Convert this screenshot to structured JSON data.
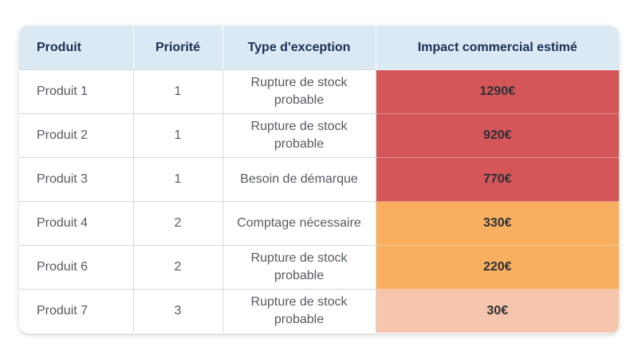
{
  "headers": {
    "product": "Produit",
    "priority": "Priorité",
    "exception_type": "Type d'exception",
    "impact": "Impact commercial estimé"
  },
  "rows": [
    {
      "product": "Produit 1",
      "priority": "1",
      "exception_type": "Rupture de stock probable",
      "impact": "1290€",
      "impact_color": "#d55659"
    },
    {
      "product": "Produit 2",
      "priority": "1",
      "exception_type": "Rupture de stock probable",
      "impact": "920€",
      "impact_color": "#d55659"
    },
    {
      "product": "Produit 3",
      "priority": "1",
      "exception_type": "Besoin de démarque",
      "impact": "770€",
      "impact_color": "#d55659"
    },
    {
      "product": "Produit 4",
      "priority": "2",
      "exception_type": "Comptage nécessaire",
      "impact": "330€",
      "impact_color": "#f8b060"
    },
    {
      "product": "Produit 6",
      "priority": "2",
      "exception_type": "Rupture de stock probable",
      "impact": "220€",
      "impact_color": "#f8b060"
    },
    {
      "product": "Produit 7",
      "priority": "3",
      "exception_type": "Rupture de stock probable",
      "impact": "30€",
      "impact_color": "#f5c6ad"
    }
  ],
  "colors": {
    "header_bg": "#dbe9f5",
    "header_text": "#1c2f55",
    "priority_1": "#d55659",
    "priority_2": "#f8b060",
    "priority_3": "#f5c6ad"
  }
}
